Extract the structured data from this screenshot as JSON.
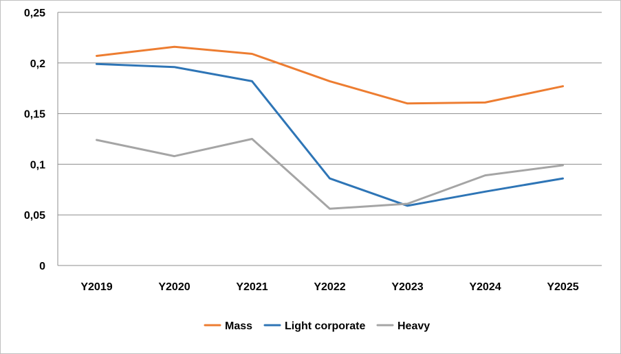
{
  "chart_data": {
    "type": "line",
    "title": "",
    "xlabel": "",
    "ylabel": "",
    "categories": [
      "Y2019",
      "Y2020",
      "Y2021",
      "Y2022",
      "Y2023",
      "Y2024",
      "Y2025"
    ],
    "ylim": [
      0,
      0.25
    ],
    "y_ticks": [
      "0",
      "0,05",
      "0,1",
      "0,15",
      "0,2",
      "0,25"
    ],
    "y_tick_values": [
      0,
      0.05,
      0.1,
      0.15,
      0.2,
      0.25
    ],
    "grid": true,
    "legend_position": "bottom",
    "series": [
      {
        "name": "Mass",
        "color": "#ed7d31",
        "values": [
          0.207,
          0.216,
          0.209,
          0.182,
          0.16,
          0.161,
          0.177
        ]
      },
      {
        "name": "Light corporate",
        "color": "#2e75b6",
        "values": [
          0.199,
          0.196,
          0.182,
          0.086,
          0.059,
          0.073,
          0.086
        ]
      },
      {
        "name": "Heavy",
        "color": "#a5a5a5",
        "values": [
          0.124,
          0.108,
          0.125,
          0.056,
          0.061,
          0.089,
          0.099
        ]
      }
    ]
  }
}
